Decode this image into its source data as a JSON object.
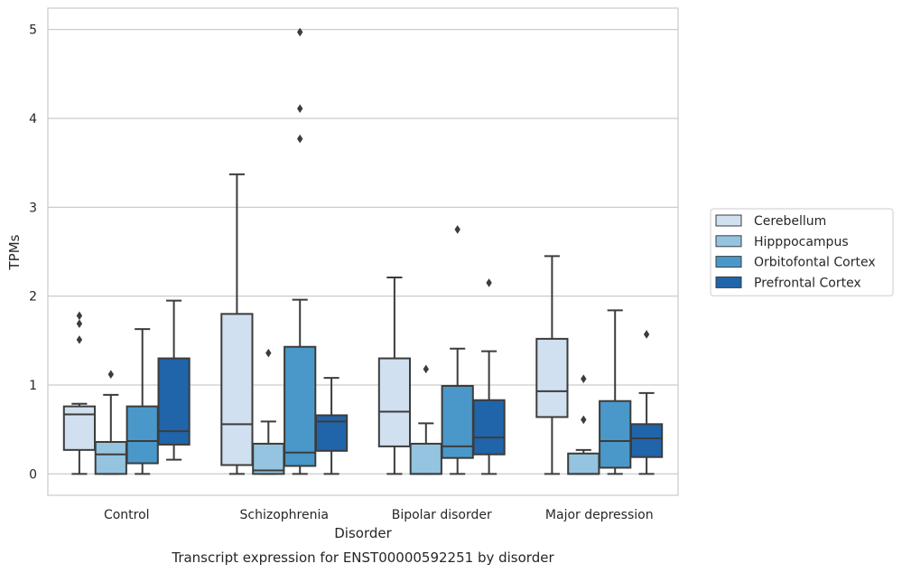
{
  "chart_data": {
    "type": "box",
    "title": "Transcript expression for ENST00000592251 by disorder",
    "xlabel": "Disorder",
    "ylabel": "TPMs",
    "ylim": [
      -0.24,
      5.24
    ],
    "yticks": [
      0,
      1,
      2,
      3,
      4,
      5
    ],
    "grid": "horizontal",
    "legend_position": "right",
    "categories": [
      "Control",
      "Schizophrenia",
      "Bipolar disorder",
      "Major depression"
    ],
    "series": [
      {
        "name": "Cerebellum",
        "color": "#d0e0f0",
        "boxes": [
          {
            "whislo": 0,
            "q1": 0.27,
            "med": 0.67,
            "q3": 0.76,
            "whishi": 0.79,
            "fliers": [
              1.51,
              1.69,
              1.78
            ]
          },
          {
            "whislo": 0,
            "q1": 0.1,
            "med": 0.56,
            "q3": 1.8,
            "whishi": 3.37,
            "fliers": []
          },
          {
            "whislo": 0,
            "q1": 0.31,
            "med": 0.7,
            "q3": 1.3,
            "whishi": 2.21,
            "fliers": []
          },
          {
            "whislo": 0,
            "q1": 0.64,
            "med": 0.93,
            "q3": 1.52,
            "whishi": 2.45,
            "fliers": []
          }
        ]
      },
      {
        "name": "Hipppocampus",
        "color": "#94c4df",
        "boxes": [
          {
            "whislo": 0,
            "q1": 0,
            "med": 0.22,
            "q3": 0.36,
            "whishi": 0.89,
            "fliers": [
              1.12
            ]
          },
          {
            "whislo": 0,
            "q1": 0,
            "med": 0.04,
            "q3": 0.34,
            "whishi": 0.59,
            "fliers": [
              1.36
            ]
          },
          {
            "whislo": 0,
            "q1": 0,
            "med": 0,
            "q3": 0.34,
            "whishi": 0.57,
            "fliers": [
              1.18
            ]
          },
          {
            "whislo": 0,
            "q1": 0,
            "med": 0,
            "q3": 0.23,
            "whishi": 0.27,
            "fliers": [
              0.61,
              1.07
            ]
          }
        ]
      },
      {
        "name": "Orbitofontal Cortex",
        "color": "#4a98c9",
        "boxes": [
          {
            "whislo": 0,
            "q1": 0.12,
            "med": 0.37,
            "q3": 0.76,
            "whishi": 1.63,
            "fliers": []
          },
          {
            "whislo": 0,
            "q1": 0.09,
            "med": 0.24,
            "q3": 1.43,
            "whishi": 1.96,
            "fliers": [
              3.77,
              4.11,
              4.97
            ]
          },
          {
            "whislo": 0,
            "q1": 0.18,
            "med": 0.31,
            "q3": 0.99,
            "whishi": 1.41,
            "fliers": [
              2.75
            ]
          },
          {
            "whislo": 0,
            "q1": 0.07,
            "med": 0.37,
            "q3": 0.82,
            "whishi": 1.84,
            "fliers": []
          }
        ]
      },
      {
        "name": "Prefrontal Cortex",
        "color": "#2064aa",
        "boxes": [
          {
            "whislo": 0.16,
            "q1": 0.33,
            "med": 0.48,
            "q3": 1.3,
            "whishi": 1.95,
            "fliers": []
          },
          {
            "whislo": 0,
            "q1": 0.26,
            "med": 0.59,
            "q3": 0.66,
            "whishi": 1.08,
            "fliers": []
          },
          {
            "whislo": 0,
            "q1": 0.22,
            "med": 0.41,
            "q3": 0.83,
            "whishi": 1.38,
            "fliers": [
              2.15
            ]
          },
          {
            "whislo": 0,
            "q1": 0.19,
            "med": 0.4,
            "q3": 0.56,
            "whishi": 0.91,
            "fliers": [
              1.57
            ]
          }
        ]
      }
    ]
  }
}
